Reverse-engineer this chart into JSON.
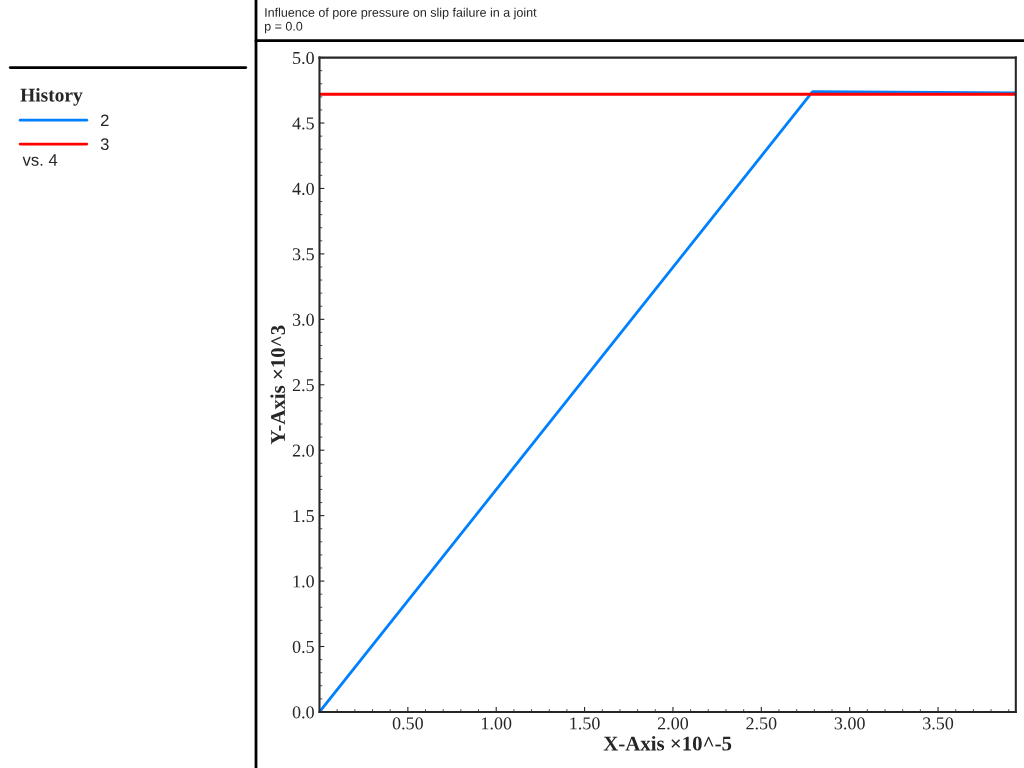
{
  "chart_data": {
    "type": "line",
    "title": "Influence of pore pressure on slip failure in a joint",
    "subtitle": "p = 0.0",
    "xlabel": "X-Axis ×10^-5",
    "ylabel": "Y-Axis ×10^3",
    "legend_title": "History",
    "annotations": [
      "vs. 4"
    ],
    "series": [
      {
        "name": "2",
        "color": "#0080ff",
        "x": [
          0,
          2.79,
          3.94
        ],
        "values": [
          0,
          4.74,
          4.73
        ]
      },
      {
        "name": "3",
        "color": "#ff0000",
        "x": [
          0,
          3.94
        ],
        "values": [
          4.72,
          4.72
        ]
      }
    ],
    "xlim": [
      0,
      3.94
    ],
    "ylim": [
      0,
      5.0
    ],
    "xticks": [
      {
        "value": 0.5,
        "label": "0.50"
      },
      {
        "value": 1.0,
        "label": "1.00"
      },
      {
        "value": 1.5,
        "label": "1.50"
      },
      {
        "value": 2.0,
        "label": "2.00"
      },
      {
        "value": 2.5,
        "label": "2.50"
      },
      {
        "value": 3.0,
        "label": "3.00"
      },
      {
        "value": 3.5,
        "label": "3.50"
      }
    ],
    "yticks": [
      {
        "value": 0,
        "label": "0.0"
      },
      {
        "value": 0.5,
        "label": "0.5"
      },
      {
        "value": 1.0,
        "label": "1.0"
      },
      {
        "value": 1.5,
        "label": "1.5"
      },
      {
        "value": 2.0,
        "label": "2.0"
      },
      {
        "value": 2.5,
        "label": "2.5"
      },
      {
        "value": 3.0,
        "label": "3.0"
      },
      {
        "value": 3.5,
        "label": "3.5"
      },
      {
        "value": 4.0,
        "label": "4.0"
      },
      {
        "value": 4.5,
        "label": "4.5"
      },
      {
        "value": 5.0,
        "label": "5.0"
      }
    ],
    "grid": false,
    "legend": "left",
    "marker": "none",
    "line_style": "solid"
  }
}
